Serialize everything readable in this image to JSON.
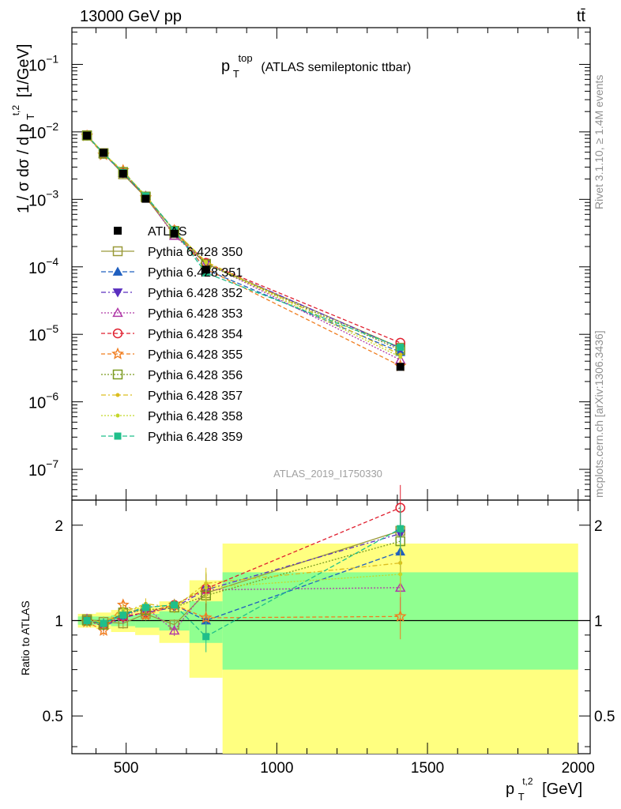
{
  "header": {
    "process": "13000 GeV pp",
    "process_symbol": "tt̄",
    "plot_title_main": "p",
    "plot_title_sup": "top",
    "plot_title_sub": "T",
    "plot_title_rest": "(ATLAS semileptonic ttbar)",
    "analysis_id": "ATLAS_2019_I1750330",
    "rivet_label": "Rivet 3.1.10, ≥ 1.4M events",
    "mcplots_label": "mcplots.cern.ch [arXiv:1306.3436]"
  },
  "axes": {
    "y_top_label": "1 / σ dσ / d p",
    "y_top_label_sup": "t,2",
    "y_top_label_sub": "T",
    "y_top_label_unit": "[1/GeV]",
    "y_ratio_label": "Ratio to ATLAS",
    "x_label_main": "p",
    "x_label_sup": "t,2",
    "x_label_sub": "T",
    "x_label_unit": "[GeV]",
    "x_ticks": [
      "500",
      "1000",
      "1500",
      "2000"
    ],
    "ratio_ticks": [
      "0.5",
      "1",
      "2"
    ],
    "top_ticks": [
      {
        "base": "10",
        "exp": "−1"
      },
      {
        "base": "10",
        "exp": "−2"
      },
      {
        "base": "10",
        "exp": "−3"
      },
      {
        "base": "10",
        "exp": "−4"
      },
      {
        "base": "10",
        "exp": "−5"
      },
      {
        "base": "10",
        "exp": "−6"
      },
      {
        "base": "10",
        "exp": "−7"
      }
    ]
  },
  "chart_data": {
    "type": "line",
    "x_scale": "linear",
    "y_scale_top": "log",
    "y_scale_ratio": "log",
    "xlim": [
      320,
      2040
    ],
    "ylim_top": [
      3.5e-08,
      0.35
    ],
    "ylim_ratio": [
      0.38,
      2.4
    ],
    "grid": false,
    "legend_placement": "left-middle",
    "x": [
      370,
      425,
      490,
      565,
      660,
      765,
      1410
    ],
    "bin_edges": [
      340,
      400,
      450,
      530,
      610,
      710,
      820,
      2000
    ],
    "data": {
      "name": "ATLAS",
      "values": [
        0.0088,
        0.0049,
        0.0024,
        0.00102,
        0.00031,
        9.1e-05,
        3.3e-06
      ],
      "ratio_band_inner": [
        [
          0.97,
          1.03
        ],
        [
          0.97,
          1.03
        ],
        [
          0.96,
          1.04
        ],
        [
          0.95,
          1.05
        ],
        [
          0.93,
          1.07
        ],
        [
          0.85,
          1.15
        ],
        [
          0.7,
          1.42
        ]
      ],
      "ratio_band_outer": [
        [
          0.95,
          1.05
        ],
        [
          0.94,
          1.06
        ],
        [
          0.92,
          1.08
        ],
        [
          0.9,
          1.1
        ],
        [
          0.85,
          1.15
        ],
        [
          0.66,
          1.34
        ],
        [
          0.37,
          1.75
        ]
      ]
    },
    "series": [
      {
        "name": "Pythia 6.428 350",
        "color": "#9a9a3a",
        "dash": "",
        "marker": "square-open",
        "ratio": [
          1.01,
          0.99,
          0.98,
          1.05,
          0.97,
          1.22,
          1.92
        ]
      },
      {
        "name": "Pythia 6.428 351",
        "color": "#1f5fbf",
        "dash": "6,3",
        "marker": "triangle-up",
        "ratio": [
          1.0,
          0.98,
          1.05,
          1.1,
          1.12,
          1.0,
          1.65
        ]
      },
      {
        "name": "Pythia 6.428 352",
        "color": "#5a2fbf",
        "dash": "6,3,2,3",
        "marker": "triangle-down",
        "ratio": [
          1.0,
          0.96,
          1.02,
          1.06,
          1.1,
          1.25,
          1.88
        ]
      },
      {
        "name": "Pythia 6.428 353",
        "color": "#b03aa8",
        "dash": "2,2",
        "marker": "triangle-open",
        "ratio": [
          1.01,
          0.97,
          1.03,
          1.1,
          0.93,
          1.25,
          1.27
        ]
      },
      {
        "name": "Pythia 6.428 354",
        "color": "#e01f2f",
        "dash": "5,3",
        "marker": "circle-open",
        "ratio": [
          1.0,
          0.97,
          1.03,
          1.06,
          1.12,
          1.26,
          2.27
        ]
      },
      {
        "name": "Pythia 6.428 355",
        "color": "#f07d1f",
        "dash": "5,3",
        "marker": "star-open",
        "ratio": [
          0.99,
          0.93,
          1.12,
          1.04,
          1.12,
          1.02,
          1.03
        ]
      },
      {
        "name": "Pythia 6.428 356",
        "color": "#7a9a1f",
        "dash": "2,2",
        "marker": "square-open",
        "ratio": [
          1.0,
          0.97,
          1.06,
          1.08,
          1.1,
          1.2,
          1.78
        ]
      },
      {
        "name": "Pythia 6.428 357",
        "color": "#dcbd1f",
        "dash": "6,3,2,3",
        "marker": "dot",
        "ratio": [
          1.0,
          0.99,
          1.06,
          1.13,
          1.1,
          1.31,
          1.52
        ]
      },
      {
        "name": "Pythia 6.428 358",
        "color": "#c4d62a",
        "dash": "2,2",
        "marker": "dot",
        "ratio": [
          1.0,
          0.99,
          1.08,
          1.1,
          1.12,
          1.27,
          1.4
        ]
      },
      {
        "name": "Pythia 6.428 359",
        "color": "#1fbf8a",
        "dash": "6,3",
        "marker": "square-filled",
        "ratio": [
          1.0,
          0.98,
          1.04,
          1.1,
          1.12,
          0.89,
          1.95
        ]
      }
    ]
  }
}
